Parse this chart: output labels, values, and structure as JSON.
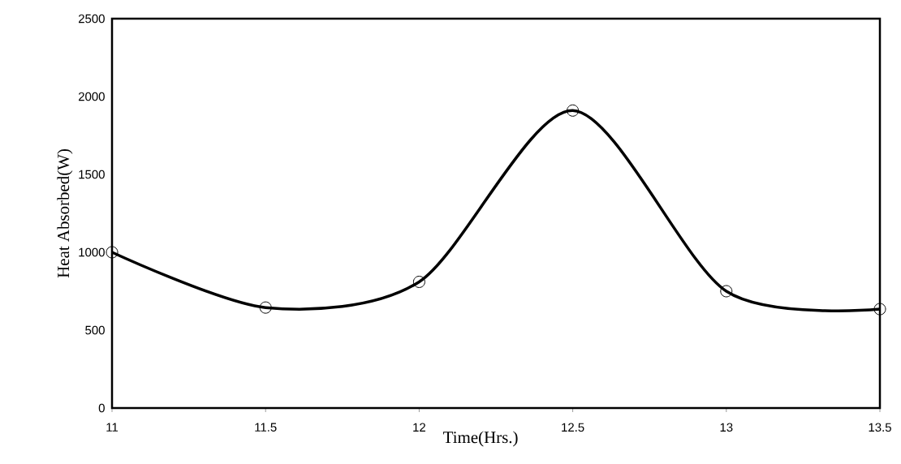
{
  "chart_data": {
    "type": "line",
    "xlabel": "Time(Hrs.)",
    "ylabel": "Heat Absorbed(W)",
    "x": [
      11,
      11.5,
      12,
      12.5,
      13,
      13.5
    ],
    "series": [
      {
        "color": "#000000",
        "values": [
          1000,
          645,
          810,
          1910,
          750,
          635
        ]
      }
    ],
    "xlim": [
      11,
      13.5
    ],
    "xticks": [
      11,
      11.5,
      12,
      12.5,
      13,
      13.5
    ],
    "ylim": [
      0,
      2500
    ],
    "yticks": [
      0,
      500,
      1000,
      1500,
      2000,
      2500
    ],
    "marker": "circle",
    "line_style": "solid"
  }
}
